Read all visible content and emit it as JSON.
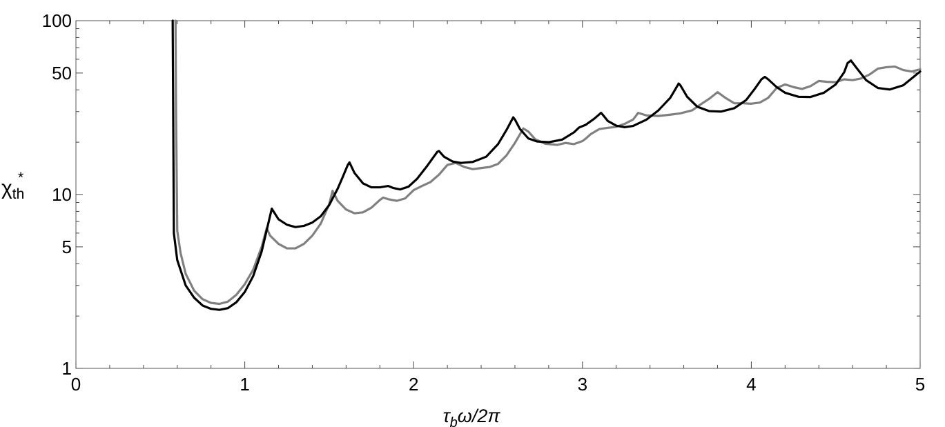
{
  "chart_data": {
    "type": "line",
    "title": "",
    "xlabel": "τ_bω/2π",
    "xlabel_parts": {
      "tau": "τ",
      "sub": "b",
      "rest": "ω/2π"
    },
    "ylabel_parts": {
      "main": "χ",
      "sub": "th",
      "sup": "*"
    },
    "xlim": [
      0,
      5
    ],
    "ylim": [
      1,
      100
    ],
    "yscale": "log",
    "grid": false,
    "legend": "none",
    "x_ticks": [
      0,
      1,
      2,
      3,
      4,
      5
    ],
    "x_tick_labels": [
      "0",
      "1",
      "2",
      "3",
      "4",
      "5"
    ],
    "y_ticks": [
      1,
      5,
      10,
      50,
      100
    ],
    "y_tick_labels": [
      "1",
      "5",
      "10",
      "50",
      "100"
    ],
    "series": [
      {
        "color": "#000000",
        "x": [
          0.573,
          0.576,
          0.58,
          0.6,
          0.65,
          0.7,
          0.75,
          0.8,
          0.85,
          0.9,
          0.95,
          1.0,
          1.05,
          1.1,
          1.16,
          1.17,
          1.2,
          1.25,
          1.3,
          1.35,
          1.4,
          1.45,
          1.5,
          1.55,
          1.58,
          1.61,
          1.62,
          1.65,
          1.7,
          1.75,
          1.8,
          1.85,
          1.86,
          1.88,
          1.92,
          1.97,
          2.02,
          2.08,
          2.14,
          2.15,
          2.18,
          2.23,
          2.28,
          2.35,
          2.43,
          2.5,
          2.55,
          2.59,
          2.6,
          2.63,
          2.68,
          2.73,
          2.8,
          2.88,
          2.95,
          2.98,
          3.02,
          3.07,
          3.11,
          3.12,
          3.15,
          3.2,
          3.25,
          3.3,
          3.38,
          3.45,
          3.52,
          3.57,
          3.58,
          3.62,
          3.68,
          3.75,
          3.82,
          3.9,
          3.97,
          4.02,
          4.06,
          4.08,
          4.1,
          4.15,
          4.2,
          4.28,
          4.35,
          4.43,
          4.5,
          4.55,
          4.57,
          4.59,
          4.62,
          4.68,
          4.75,
          4.82,
          4.9,
          5.0
        ],
        "y": [
          100,
          30,
          6.0,
          4.2,
          3.0,
          2.55,
          2.3,
          2.2,
          2.17,
          2.22,
          2.4,
          2.75,
          3.4,
          4.7,
          8.3,
          8.0,
          7.2,
          6.7,
          6.5,
          6.6,
          6.9,
          7.5,
          8.7,
          10.8,
          12.6,
          14.8,
          15.3,
          13.3,
          11.6,
          11.0,
          11.0,
          11.2,
          11.1,
          10.9,
          10.7,
          11.1,
          12.3,
          14.6,
          17.6,
          17.8,
          16.5,
          15.5,
          15.2,
          15.4,
          16.5,
          19.5,
          23.5,
          27.8,
          27.0,
          23.8,
          21.0,
          20.2,
          20.0,
          20.7,
          22.8,
          24.3,
          25.2,
          27.3,
          29.5,
          28.8,
          26.5,
          24.9,
          24.4,
          24.8,
          27.0,
          30.5,
          36.0,
          43.5,
          42.5,
          36.5,
          32.0,
          30.2,
          30.0,
          31.4,
          35.0,
          40.5,
          46.0,
          47.5,
          46.0,
          41.5,
          38.5,
          36.5,
          36.4,
          38.5,
          43.0,
          50.5,
          57.0,
          59.0,
          54.0,
          45.5,
          41.0,
          40.2,
          42.5,
          51.0
        ]
      },
      {
        "color": "#808080",
        "x": [
          0.59,
          0.593,
          0.6,
          0.62,
          0.65,
          0.7,
          0.75,
          0.8,
          0.85,
          0.9,
          0.95,
          1.0,
          1.05,
          1.1,
          1.13,
          1.15,
          1.2,
          1.25,
          1.3,
          1.35,
          1.4,
          1.45,
          1.5,
          1.52,
          1.55,
          1.6,
          1.65,
          1.7,
          1.75,
          1.8,
          1.82,
          1.85,
          1.9,
          1.95,
          2.0,
          2.05,
          2.1,
          2.15,
          2.2,
          2.25,
          2.3,
          2.35,
          2.4,
          2.45,
          2.5,
          2.55,
          2.6,
          2.65,
          2.68,
          2.72,
          2.78,
          2.85,
          2.9,
          2.95,
          3.0,
          3.02,
          3.05,
          3.1,
          3.15,
          3.2,
          3.25,
          3.3,
          3.33,
          3.38,
          3.45,
          3.52,
          3.58,
          3.65,
          3.7,
          3.75,
          3.8,
          3.85,
          3.9,
          3.95,
          4.0,
          4.05,
          4.1,
          4.15,
          4.2,
          4.25,
          4.3,
          4.35,
          4.4,
          4.45,
          4.5,
          4.55,
          4.6,
          4.65,
          4.7,
          4.75,
          4.8,
          4.85,
          4.9,
          4.95,
          5.0
        ],
        "y": [
          100,
          30,
          6.2,
          4.6,
          3.5,
          2.8,
          2.5,
          2.38,
          2.35,
          2.42,
          2.65,
          3.05,
          3.7,
          5.0,
          6.4,
          5.8,
          5.2,
          4.9,
          4.9,
          5.2,
          5.8,
          6.8,
          8.8,
          10.5,
          9.2,
          8.2,
          7.8,
          7.9,
          8.4,
          9.3,
          9.6,
          9.4,
          9.2,
          9.5,
          10.6,
          11.2,
          11.8,
          13.0,
          14.8,
          15.2,
          14.4,
          14.0,
          14.2,
          14.4,
          15.0,
          16.8,
          19.8,
          24.0,
          23.0,
          20.8,
          19.6,
          19.3,
          19.8,
          19.5,
          20.3,
          21.0,
          22.3,
          23.8,
          24.2,
          24.5,
          25.5,
          27.0,
          29.5,
          28.5,
          28.3,
          28.8,
          29.3,
          30.5,
          33.0,
          35.5,
          38.8,
          35.8,
          33.5,
          33.5,
          33.3,
          33.8,
          36.0,
          41.0,
          43.0,
          41.5,
          40.5,
          42.0,
          45.0,
          44.5,
          44.3,
          46.0,
          45.5,
          46.5,
          49.0,
          53.0,
          54.0,
          54.5,
          52.0,
          51.0,
          52.5
        ]
      }
    ]
  }
}
